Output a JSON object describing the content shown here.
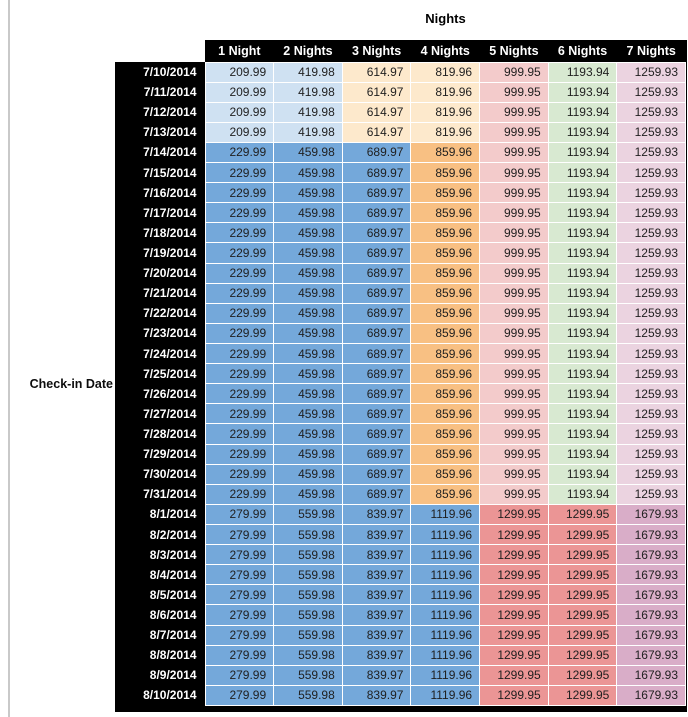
{
  "page": {
    "title": "Nights",
    "row_axis_label": "Check-in Date"
  },
  "colors": {
    "header_bg": "#000000",
    "header_text": "#ffffff",
    "light_blue": "#cfe1f2",
    "light_orange": "#fde9cc",
    "light_red": "#f3cbcb",
    "light_green": "#d8e9d1",
    "light_pink": "#ebd3e0",
    "med_blue": "#74a8da",
    "med_orange": "#f8c083",
    "med_red": "#eb9595",
    "med_mauve": "#d9adc8"
  },
  "chart_data": {
    "type": "table",
    "title": "Nights",
    "row_header_label": "Check-in Date",
    "columns": [
      "1 Night",
      "2 Nights",
      "3 Nights",
      "4 Nights",
      "5 Nights",
      "6 Nights",
      "7 Nights"
    ],
    "row_groups": [
      {
        "dates": [
          "7/10/2014",
          "7/11/2014",
          "7/12/2014",
          "7/13/2014"
        ],
        "values": [
          209.99,
          419.98,
          614.97,
          819.96,
          999.95,
          1193.94,
          1259.93
        ],
        "cell_colors": [
          "light_blue",
          "light_blue",
          "light_orange",
          "light_orange",
          "light_red",
          "light_green",
          "light_pink"
        ]
      },
      {
        "dates": [
          "7/14/2014",
          "7/15/2014",
          "7/16/2014",
          "7/17/2014",
          "7/18/2014",
          "7/19/2014",
          "7/20/2014",
          "7/21/2014",
          "7/22/2014",
          "7/23/2014",
          "7/24/2014",
          "7/25/2014",
          "7/26/2014",
          "7/27/2014",
          "7/28/2014",
          "7/29/2014",
          "7/30/2014",
          "7/31/2014"
        ],
        "values": [
          229.99,
          459.98,
          689.97,
          859.96,
          999.95,
          1193.94,
          1259.93
        ],
        "cell_colors": [
          "med_blue",
          "med_blue",
          "med_blue",
          "med_orange",
          "light_red",
          "light_green",
          "light_pink"
        ]
      },
      {
        "dates": [
          "8/1/2014",
          "8/2/2014",
          "8/3/2014",
          "8/4/2014",
          "8/5/2014",
          "8/6/2014",
          "8/7/2014",
          "8/8/2014",
          "8/9/2014",
          "8/10/2014"
        ],
        "values": [
          279.99,
          559.98,
          839.97,
          1119.96,
          1299.95,
          1299.95,
          1679.93
        ],
        "cell_colors": [
          "med_blue",
          "med_blue",
          "med_blue",
          "med_blue",
          "med_red",
          "med_red",
          "med_mauve"
        ]
      }
    ]
  }
}
